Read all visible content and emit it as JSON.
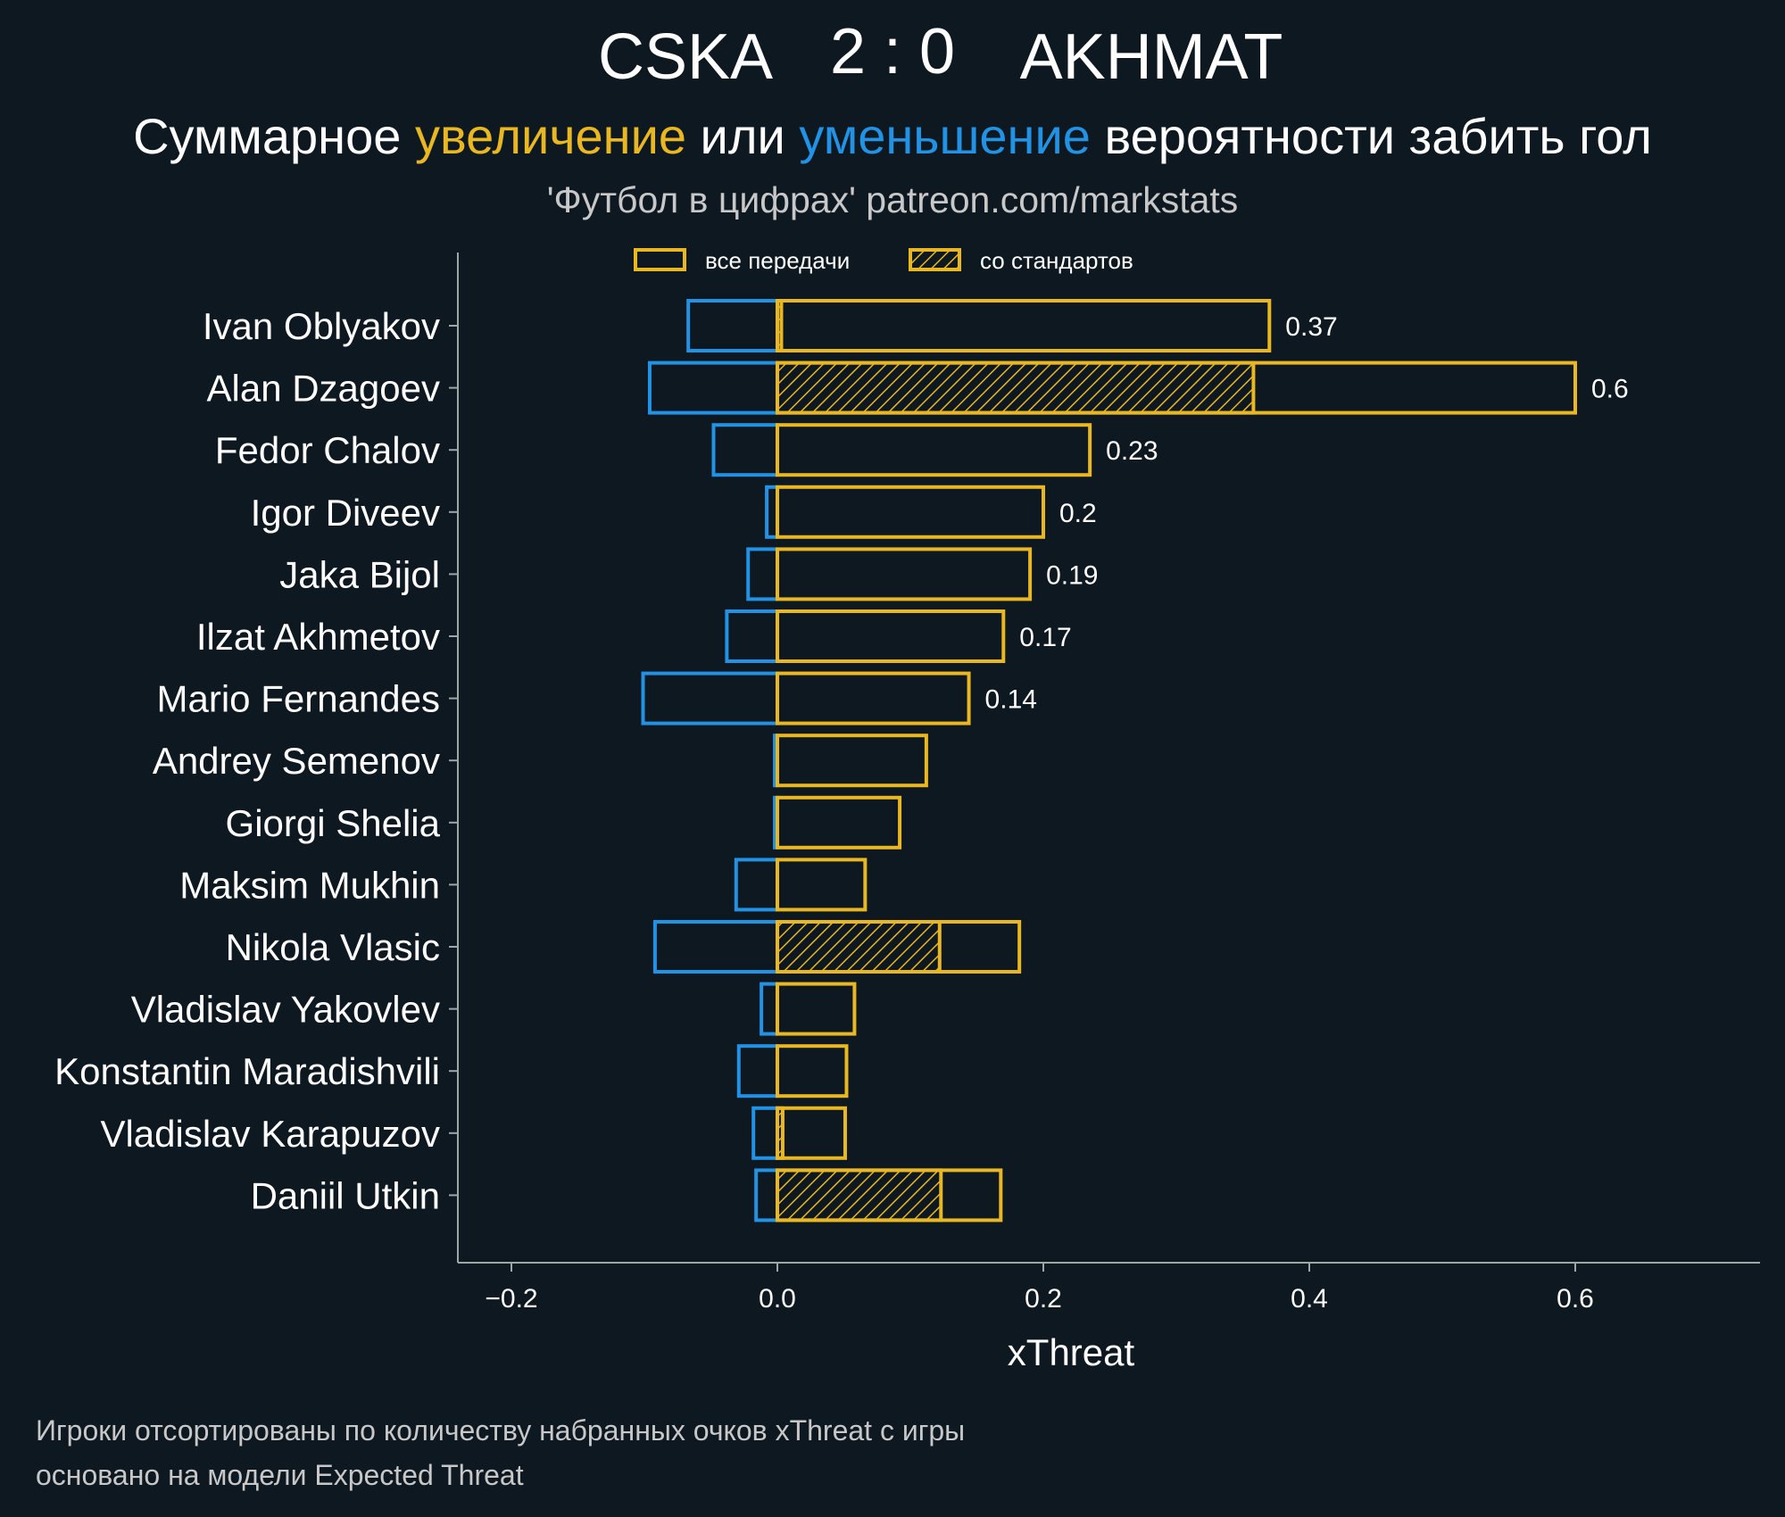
{
  "header": {
    "home_team": "CSKA",
    "score": "2 : 0",
    "away_team": "AKHMAT",
    "subtitle_parts": [
      {
        "text": "Суммарное ",
        "role": "plain"
      },
      {
        "text": "увеличение",
        "role": "positive"
      },
      {
        "text": " или ",
        "role": "plain"
      },
      {
        "text": "уменьшение",
        "role": "negative"
      },
      {
        "text": " вероятности забить гол",
        "role": "plain"
      }
    ],
    "source": "'Футбол в цифрах' patreon.com/markstats"
  },
  "colors": {
    "background": "#0e1820",
    "positive": "#e8b722",
    "negative": "#2292e5",
    "axis": "#9aa8a8",
    "text": "#ffffff",
    "muted": "#c8c8c8"
  },
  "legend": {
    "all_passes": "все передачи",
    "set_pieces": "со стандартов"
  },
  "footnote": {
    "line1": "Игроки отсортированы по количеству набранных очков xThreat с игры",
    "line2": "основано на модели Expected Threat"
  },
  "chart_data": {
    "type": "bar",
    "orientation": "horizontal",
    "xlabel": "xThreat",
    "xlim": [
      -0.24,
      0.74
    ],
    "xticks": [
      -0.2,
      0.0,
      0.2,
      0.4,
      0.6
    ],
    "xtick_labels": [
      "−0.2",
      "0.0",
      "0.2",
      "0.4",
      "0.6"
    ],
    "categories": [
      "Ivan Oblyakov",
      "Alan Dzagoev",
      "Fedor Chalov",
      "Igor Diveev",
      "Jaka Bijol",
      "Ilzat Akhmetov",
      "Mario Fernandes",
      "Andrey Semenov",
      "Giorgi Shelia",
      "Maksim Mukhin",
      "Nikola Vlasic",
      "Vladislav Yakovlev",
      "Konstantin Maradishvili",
      "Vladislav Karapuzov",
      "Daniil Utkin"
    ],
    "series": [
      {
        "name": "все передачи (увеличение)",
        "values": [
          0.37,
          0.6,
          0.235,
          0.2,
          0.19,
          0.17,
          0.144,
          0.112,
          0.092,
          0.066,
          0.182,
          0.058,
          0.052,
          0.051,
          0.168
        ]
      },
      {
        "name": "все передачи (уменьшение)",
        "values": [
          -0.067,
          -0.096,
          -0.048,
          -0.008,
          -0.022,
          -0.038,
          -0.101,
          -0.002,
          -0.002,
          -0.031,
          -0.092,
          -0.012,
          -0.029,
          -0.018,
          -0.016
        ]
      },
      {
        "name": "со стандартов",
        "values": [
          0.003,
          0.358,
          0.0,
          0.0,
          0.0,
          0.0,
          0.0,
          0.0,
          0.0,
          0.0,
          0.122,
          0.0,
          0.0,
          0.004,
          0.123
        ]
      }
    ],
    "value_labels": [
      "0.37",
      "0.6",
      "0.23",
      "0.2",
      "0.19",
      "0.17",
      "0.14",
      "",
      "",
      "",
      "",
      "",
      "",
      "",
      ""
    ]
  }
}
